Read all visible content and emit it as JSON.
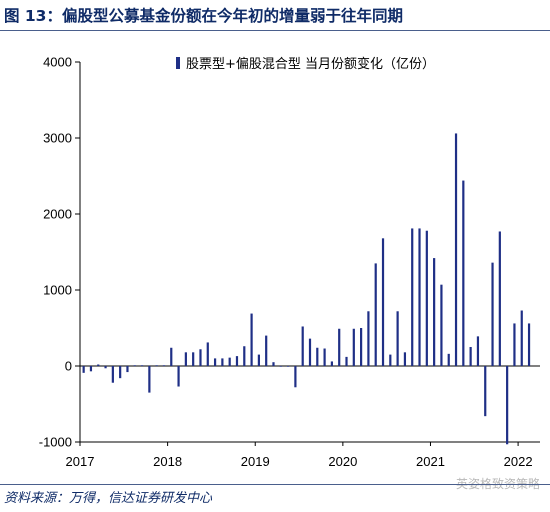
{
  "figure_title": "图 13：偏股型公募基金份额在今年初的增量弱于往年同期",
  "source_note": "资料来源：万得，信达证券研发中心",
  "watermark": "英姿格致资策略",
  "colors": {
    "bar": "#1f2f86",
    "title": "#0f2b67",
    "axis": "#000000"
  },
  "chart_data": {
    "type": "bar",
    "title": "",
    "xlabel": "",
    "ylabel": "",
    "ylim": [
      -1000,
      4000
    ],
    "yticks": [
      -1000,
      0,
      1000,
      2000,
      3000,
      4000
    ],
    "x_tick_labels": [
      "2017",
      "2018",
      "2019",
      "2020",
      "2021",
      "2022"
    ],
    "grid": false,
    "legend_position": "top-right",
    "series": [
      {
        "name": "股票型+偏股混合型 当月份额变化（亿份）",
        "color": "#1f2f86",
        "x": [
          "2017-01",
          "2017-02",
          "2017-03",
          "2017-04",
          "2017-05",
          "2017-06",
          "2017-07",
          "2017-08",
          "2017-09",
          "2017-10",
          "2017-11",
          "2017-12",
          "2018-01",
          "2018-02",
          "2018-03",
          "2018-04",
          "2018-05",
          "2018-06",
          "2018-07",
          "2018-08",
          "2018-09",
          "2018-10",
          "2018-11",
          "2018-12",
          "2019-01",
          "2019-02",
          "2019-03",
          "2019-04",
          "2019-05",
          "2019-06",
          "2019-07",
          "2019-08",
          "2019-09",
          "2019-10",
          "2019-11",
          "2019-12",
          "2020-01",
          "2020-02",
          "2020-03",
          "2020-04",
          "2020-05",
          "2020-06",
          "2020-07",
          "2020-08",
          "2020-09",
          "2020-10",
          "2020-11",
          "2020-12",
          "2021-01",
          "2021-02",
          "2021-03",
          "2021-04",
          "2021-05",
          "2021-06",
          "2021-07",
          "2021-08",
          "2021-09",
          "2021-10",
          "2021-11",
          "2021-12",
          "2022-01",
          "2022-02"
        ],
        "values": [
          -90,
          -70,
          20,
          -30,
          -220,
          -160,
          -80,
          10,
          10,
          -350,
          10,
          10,
          240,
          -270,
          180,
          180,
          220,
          310,
          100,
          100,
          110,
          130,
          260,
          690,
          150,
          400,
          50,
          -10,
          -10,
          -280,
          520,
          360,
          240,
          230,
          60,
          490,
          120,
          490,
          500,
          720,
          1350,
          1680,
          150,
          720,
          180,
          1810,
          1810,
          1780,
          1420,
          1070,
          160,
          3060,
          2440,
          250,
          390,
          -660,
          1360,
          1770,
          -1030,
          560,
          730,
          560
        ]
      }
    ]
  }
}
